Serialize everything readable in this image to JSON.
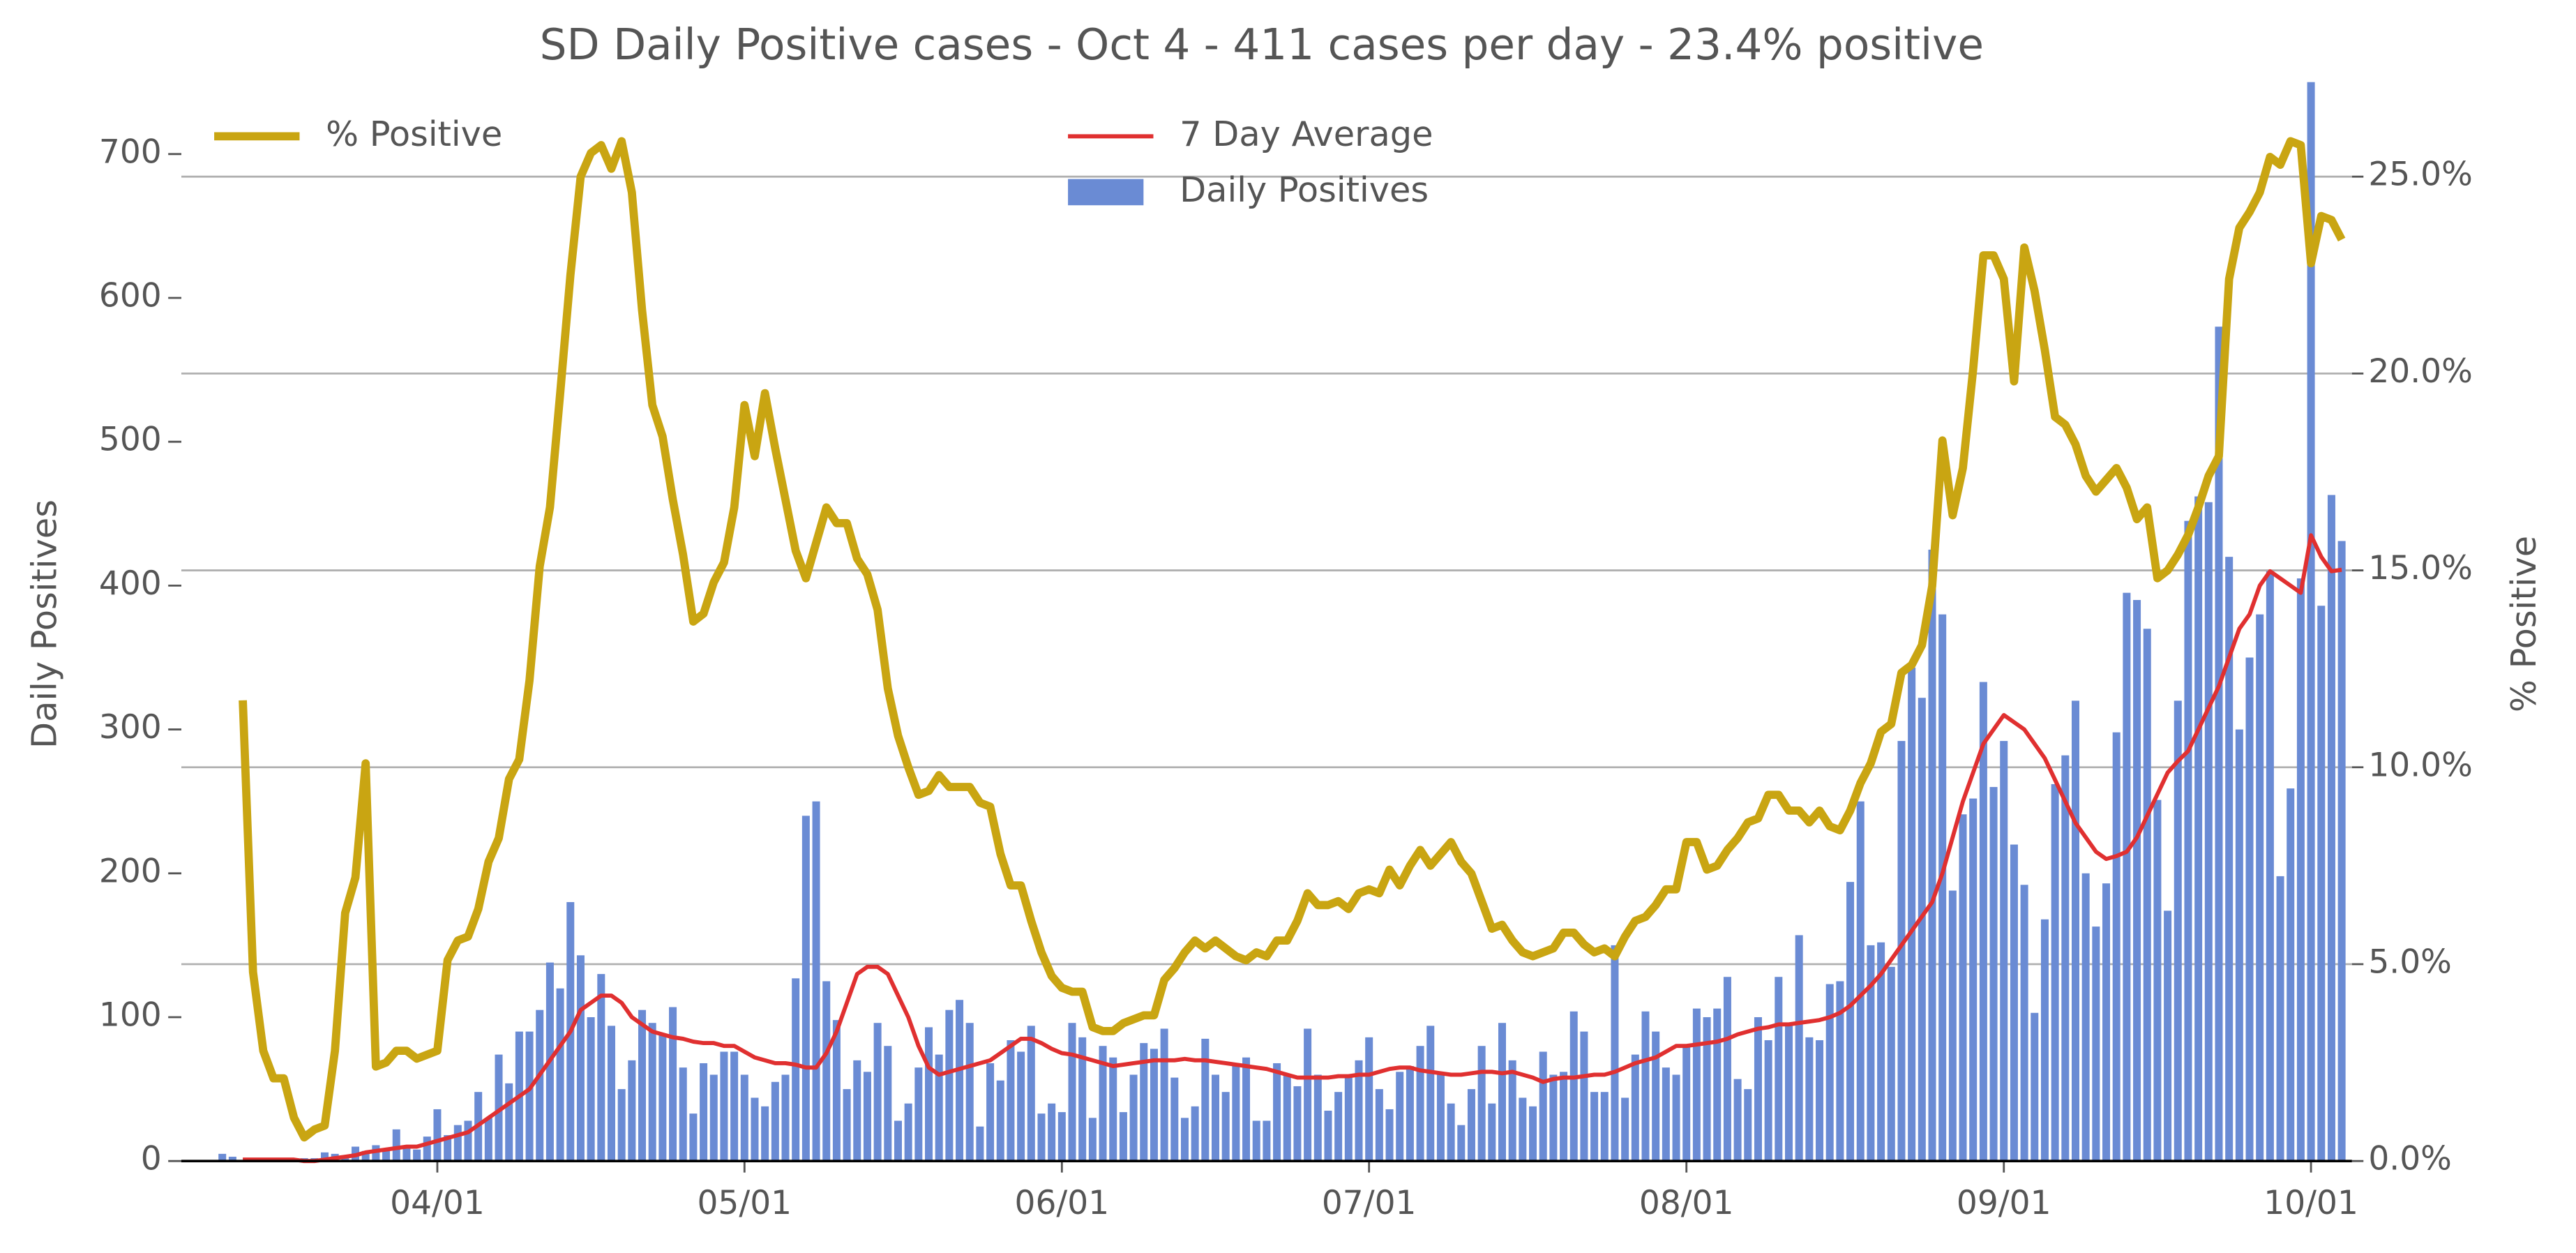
{
  "chart_data": {
    "type": "bar-line",
    "title": "SD Daily Positive cases - Oct 4 - 411 cases per day - 23.4% positive",
    "ylabel": "Daily Positives",
    "y2label": "% Positive",
    "x": [
      "03/11",
      "03/12",
      "03/13",
      "03/14",
      "03/15",
      "03/16",
      "03/17",
      "03/18",
      "03/19",
      "03/20",
      "03/21",
      "03/22",
      "03/23",
      "03/24",
      "03/25",
      "03/26",
      "03/27",
      "03/28",
      "03/29",
      "03/30",
      "03/31",
      "04/01",
      "04/02",
      "04/03",
      "04/04",
      "04/05",
      "04/06",
      "04/07",
      "04/08",
      "04/09",
      "04/10",
      "04/11",
      "04/12",
      "04/13",
      "04/14",
      "04/15",
      "04/16",
      "04/17",
      "04/18",
      "04/19",
      "04/20",
      "04/21",
      "04/22",
      "04/23",
      "04/24",
      "04/25",
      "04/26",
      "04/27",
      "04/28",
      "04/29",
      "04/30",
      "05/01",
      "05/02",
      "05/03",
      "05/04",
      "05/05",
      "05/06",
      "05/07",
      "05/08",
      "05/09",
      "05/10",
      "05/11",
      "05/12",
      "05/13",
      "05/14",
      "05/15",
      "05/16",
      "05/17",
      "05/18",
      "05/19",
      "05/20",
      "05/21",
      "05/22",
      "05/23",
      "05/24",
      "05/25",
      "05/26",
      "05/27",
      "05/28",
      "05/29",
      "05/30",
      "05/31",
      "06/01",
      "06/02",
      "06/03",
      "06/04",
      "06/05",
      "06/06",
      "06/07",
      "06/08",
      "06/09",
      "06/10",
      "06/11",
      "06/12",
      "06/13",
      "06/14",
      "06/15",
      "06/16",
      "06/17",
      "06/18",
      "06/19",
      "06/20",
      "06/21",
      "06/22",
      "06/23",
      "06/24",
      "06/25",
      "06/26",
      "06/27",
      "06/28",
      "06/29",
      "06/30",
      "07/01",
      "07/02",
      "07/03",
      "07/04",
      "07/05",
      "07/06",
      "07/07",
      "07/08",
      "07/09",
      "07/10",
      "07/11",
      "07/12",
      "07/13",
      "07/14",
      "07/15",
      "07/16",
      "07/17",
      "07/18",
      "07/19",
      "07/20",
      "07/21",
      "07/22",
      "07/23",
      "07/24",
      "07/25",
      "07/26",
      "07/27",
      "07/28",
      "07/29",
      "07/30",
      "07/31",
      "08/01",
      "08/02",
      "08/03",
      "08/04",
      "08/05",
      "08/06",
      "08/07",
      "08/08",
      "08/09",
      "08/10",
      "08/11",
      "08/12",
      "08/13",
      "08/14",
      "08/15",
      "08/16",
      "08/17",
      "08/18",
      "08/19",
      "08/20",
      "08/21",
      "08/22",
      "08/23",
      "08/24",
      "08/25",
      "08/26",
      "08/27",
      "08/28",
      "08/29",
      "08/30",
      "08/31",
      "09/01",
      "09/02",
      "09/03",
      "09/04",
      "09/05",
      "09/06",
      "09/07",
      "09/08",
      "09/09",
      "09/10",
      "09/11",
      "09/12",
      "09/13",
      "09/14",
      "09/15",
      "09/16",
      "09/17",
      "09/18",
      "09/19",
      "09/20",
      "09/21",
      "09/22",
      "09/23",
      "09/24",
      "09/25",
      "09/26",
      "09/27",
      "09/28",
      "09/29",
      "09/30",
      "10/01",
      "10/02",
      "10/03",
      "10/04"
    ],
    "series": [
      {
        "name": "Daily Positives",
        "kind": "bar",
        "color": "#6a8bd4",
        "values": [
          5,
          3,
          0,
          0,
          0,
          0,
          0,
          1,
          2,
          2,
          6,
          5,
          4,
          10,
          7,
          11,
          8,
          22,
          10,
          8,
          17,
          36,
          18,
          25,
          28,
          48,
          30,
          74,
          54,
          90,
          90,
          105,
          138,
          120,
          180,
          143,
          100,
          130,
          94,
          50,
          70,
          105,
          96,
          88,
          107,
          65,
          33,
          68,
          60,
          76,
          76,
          60,
          44,
          38,
          55,
          60,
          127,
          240,
          250,
          125,
          98,
          50,
          70,
          62,
          96,
          80,
          28,
          40,
          65,
          93,
          74,
          105,
          112,
          96,
          24,
          68,
          56,
          84,
          76,
          94,
          33,
          40,
          34,
          96,
          86,
          30,
          80,
          72,
          34,
          60,
          82,
          78,
          92,
          58,
          30,
          38,
          85,
          60,
          48,
          68,
          72,
          28,
          28,
          68,
          60,
          52,
          92,
          60,
          35,
          48,
          60,
          70,
          86,
          50,
          36,
          62,
          66,
          80,
          94,
          60,
          40,
          25,
          50,
          80,
          40,
          96,
          70,
          44,
          38,
          76,
          60,
          62,
          104,
          90,
          48,
          48,
          150,
          44,
          74,
          104,
          90,
          65,
          60,
          80,
          106,
          100,
          106,
          128,
          57,
          50,
          100,
          84,
          128,
          96,
          157,
          86,
          84,
          123,
          125,
          194,
          250,
          150,
          152,
          135,
          292,
          343,
          322,
          425,
          380,
          188,
          241,
          252,
          333,
          260,
          292,
          220,
          192,
          103,
          168,
          262,
          282,
          320,
          200,
          163,
          193,
          298,
          395,
          390,
          370,
          251,
          174,
          320,
          445,
          462,
          458,
          580,
          420,
          300,
          350,
          380,
          410,
          198,
          259,
          405,
          750,
          386,
          463,
          431
        ]
      },
      {
        "name": "7 Day Average",
        "kind": "line",
        "color": "#e03030",
        "values": [
          null,
          null,
          1,
          1,
          1,
          1,
          1,
          1,
          0,
          0,
          1,
          2,
          3,
          4,
          6,
          7,
          8,
          9,
          10,
          10,
          12,
          14,
          16,
          18,
          20,
          25,
          30,
          35,
          40,
          45,
          50,
          60,
          70,
          80,
          90,
          105,
          110,
          115,
          115,
          110,
          100,
          95,
          90,
          88,
          86,
          85,
          83,
          82,
          82,
          80,
          80,
          76,
          72,
          70,
          68,
          68,
          67,
          65,
          65,
          75,
          90,
          110,
          130,
          135,
          135,
          130,
          115,
          100,
          80,
          65,
          60,
          62,
          64,
          66,
          68,
          70,
          75,
          80,
          85,
          85,
          82,
          78,
          75,
          74,
          72,
          70,
          68,
          66,
          67,
          68,
          69,
          70,
          70,
          70,
          71,
          70,
          70,
          69,
          68,
          67,
          66,
          65,
          64,
          62,
          60,
          58,
          58,
          58,
          58,
          59,
          59,
          60,
          60,
          62,
          64,
          65,
          65,
          63,
          62,
          61,
          60,
          60,
          61,
          62,
          62,
          61,
          62,
          60,
          58,
          55,
          57,
          58,
          58,
          59,
          60,
          60,
          62,
          65,
          68,
          70,
          72,
          76,
          80,
          80,
          81,
          82,
          83,
          85,
          88,
          90,
          92,
          93,
          95,
          95,
          96,
          97,
          98,
          100,
          103,
          108,
          115,
          122,
          130,
          140,
          150,
          160,
          170,
          180,
          200,
          225,
          250,
          270,
          290,
          300,
          310,
          305,
          300,
          290,
          280,
          265,
          250,
          235,
          225,
          215,
          210,
          212,
          215,
          225,
          240,
          255,
          270,
          278,
          285,
          300,
          315,
          330,
          350,
          370,
          380,
          400,
          410,
          405,
          400,
          395,
          435,
          420,
          410,
          411
        ]
      },
      {
        "name": "% Positive",
        "kind": "line",
        "axis": "y2",
        "color": "#c9a512",
        "values": [
          null,
          null,
          11.7,
          4.8,
          2.8,
          2.1,
          2.1,
          1.1,
          0.6,
          0.8,
          0.9,
          2.8,
          6.3,
          7.2,
          10.1,
          2.4,
          2.5,
          2.8,
          2.8,
          2.6,
          2.7,
          2.8,
          5.1,
          5.6,
          5.7,
          6.4,
          7.6,
          8.2,
          9.7,
          10.2,
          12.2,
          15.1,
          16.6,
          19.5,
          22.5,
          25.0,
          25.6,
          25.8,
          25.2,
          25.9,
          24.6,
          21.6,
          19.2,
          18.4,
          16.8,
          15.4,
          13.7,
          13.9,
          14.7,
          15.2,
          16.6,
          19.2,
          17.9,
          19.5,
          18.1,
          16.8,
          15.5,
          14.8,
          15.7,
          16.6,
          16.2,
          16.2,
          15.3,
          14.9,
          14.0,
          12.0,
          10.8,
          10.0,
          9.3,
          9.4,
          9.8,
          9.5,
          9.5,
          9.5,
          9.1,
          9.0,
          7.8,
          7.0,
          7.0,
          6.1,
          5.3,
          4.7,
          4.4,
          4.3,
          4.3,
          3.4,
          3.3,
          3.3,
          3.5,
          3.6,
          3.7,
          3.7,
          4.6,
          4.9,
          5.3,
          5.6,
          5.4,
          5.6,
          5.4,
          5.2,
          5.1,
          5.3,
          5.2,
          5.6,
          5.6,
          6.1,
          6.8,
          6.5,
          6.5,
          6.6,
          6.4,
          6.8,
          6.9,
          6.8,
          7.4,
          7.0,
          7.5,
          7.9,
          7.5,
          7.8,
          8.1,
          7.6,
          7.3,
          6.6,
          5.9,
          6.0,
          5.6,
          5.3,
          5.2,
          5.3,
          5.4,
          5.8,
          5.8,
          5.5,
          5.3,
          5.4,
          5.2,
          5.7,
          6.1,
          6.2,
          6.5,
          6.9,
          6.9,
          8.1,
          8.1,
          7.4,
          7.5,
          7.9,
          8.2,
          8.6,
          8.7,
          9.3,
          9.3,
          8.9,
          8.9,
          8.6,
          8.9,
          8.5,
          8.4,
          8.9,
          9.6,
          10.1,
          10.9,
          11.1,
          12.4,
          12.6,
          13.1,
          14.6,
          18.3,
          16.4,
          17.6,
          20.1,
          23.0,
          23.0,
          22.4,
          19.8,
          23.2,
          22.1,
          20.6,
          18.9,
          18.7,
          18.2,
          17.4,
          17.0,
          17.3,
          17.6,
          17.1,
          16.3,
          16.6,
          14.8,
          15.0,
          15.4,
          15.9,
          16.6,
          17.4,
          17.9,
          22.4,
          23.7,
          24.1,
          24.6,
          25.5,
          25.3,
          25.9,
          25.8,
          22.8,
          24.0,
          23.9,
          23.4
        ]
      }
    ],
    "xlim": [
      "03/07",
      "10/05"
    ],
    "xticks": [
      "04/01",
      "05/01",
      "06/01",
      "07/01",
      "08/01",
      "09/01",
      "10/01"
    ],
    "ylim": [
      0,
      750
    ],
    "yticks": [
      0,
      100,
      200,
      300,
      400,
      500,
      600,
      700
    ],
    "y2lim": [
      0,
      27.4
    ],
    "y2ticks": [
      {
        "value": 0,
        "label": "0.0%"
      },
      {
        "value": 5,
        "label": "5.0%"
      },
      {
        "value": 10,
        "label": "10.0%"
      },
      {
        "value": 15,
        "label": "15.0%"
      },
      {
        "value": 20,
        "label": "20.0%"
      },
      {
        "value": 25,
        "label": "25.0%"
      }
    ],
    "grid": "y2"
  }
}
